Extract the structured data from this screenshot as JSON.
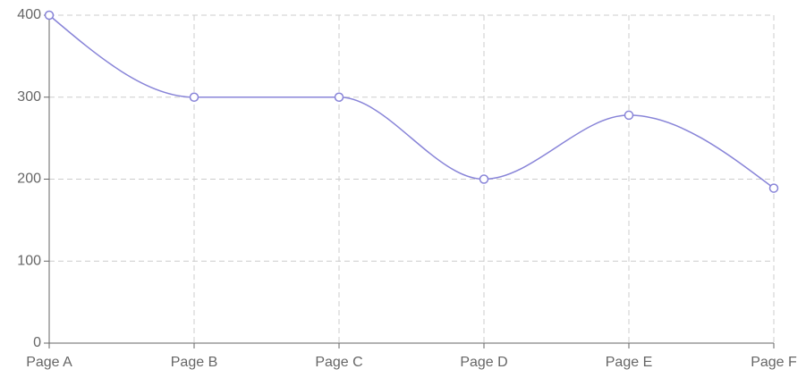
{
  "chart_data": {
    "type": "line",
    "categories": [
      "Page A",
      "Page B",
      "Page C",
      "Page D",
      "Page E",
      "Page F"
    ],
    "values": [
      400,
      300,
      300,
      200,
      278,
      189
    ],
    "color": "#8884d8",
    "ylim": [
      0,
      400
    ],
    "yticks": [
      0,
      100,
      200,
      300,
      400
    ],
    "grid": true
  }
}
